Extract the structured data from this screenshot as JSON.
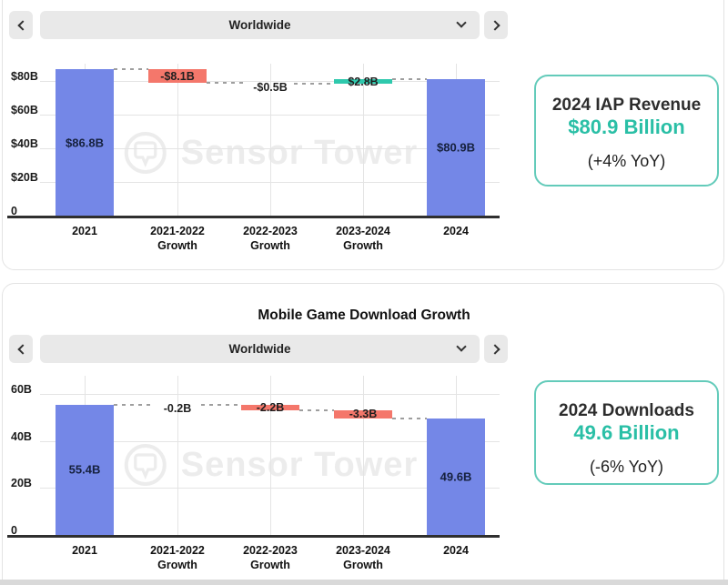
{
  "controls": [
    {
      "selector_value": "Worldwide"
    },
    {
      "selector_value": "Worldwide"
    }
  ],
  "chart_data": [
    {
      "type": "waterfall",
      "title": "",
      "units": "USD billions",
      "categories": [
        "2021",
        "2021-2022\nGrowth",
        "2022-2023\nGrowth",
        "2023-2024\nGrowth",
        "2024"
      ],
      "bars": [
        {
          "kind": "total",
          "value": 86.8,
          "label": "$86.8B"
        },
        {
          "kind": "delta",
          "value": -8.1,
          "label": "-$8.1B"
        },
        {
          "kind": "delta",
          "value": -0.5,
          "label": "-$0.5B"
        },
        {
          "kind": "delta",
          "value": 2.8,
          "label": "$2.8B"
        },
        {
          "kind": "total",
          "value": 80.9,
          "label": "$80.9B"
        }
      ],
      "y_ticks": [
        {
          "value": 80,
          "label": "$80B"
        },
        {
          "value": 60,
          "label": "$60B"
        },
        {
          "value": 40,
          "label": "$40B"
        },
        {
          "value": 20,
          "label": "$20B"
        },
        {
          "value": 0,
          "label": "0"
        }
      ],
      "ylim": [
        0,
        90
      ],
      "grid": true
    },
    {
      "type": "waterfall",
      "title": "Mobile Game Download Growth",
      "units": "billions of downloads",
      "categories": [
        "2021",
        "2021-2022\nGrowth",
        "2022-2023\nGrowth",
        "2023-2024\nGrowth",
        "2024"
      ],
      "bars": [
        {
          "kind": "total",
          "value": 55.4,
          "label": "55.4B"
        },
        {
          "kind": "delta",
          "value": -0.2,
          "label": "-0.2B"
        },
        {
          "kind": "delta",
          "value": -2.2,
          "label": "-2.2B"
        },
        {
          "kind": "delta",
          "value": -3.3,
          "label": "-3.3B"
        },
        {
          "kind": "total",
          "value": 49.6,
          "label": "49.6B"
        }
      ],
      "y_ticks": [
        {
          "value": 60,
          "label": "60B"
        },
        {
          "value": 40,
          "label": "40B"
        },
        {
          "value": 20,
          "label": "20B"
        },
        {
          "value": 0,
          "label": "0"
        }
      ],
      "ylim": [
        0,
        67
      ],
      "grid": true
    }
  ],
  "stat_cards": [
    {
      "title": "2024 IAP Revenue",
      "value": "$80.9 Billion",
      "yoy": "(+4% YoY)"
    },
    {
      "title": "2024 Downloads",
      "value": "49.6 Billion",
      "yoy": "(-6% YoY)"
    }
  ],
  "watermark": {
    "text": "Sensor Tower"
  },
  "colors": {
    "total_bar": "#7487e7",
    "negative_bar": "#f4776b",
    "positive_bar": "#2fc9ad",
    "accent_text": "#2abfa6",
    "stat_card_border": "#63cbba",
    "control_bg": "#e9e9e9"
  }
}
